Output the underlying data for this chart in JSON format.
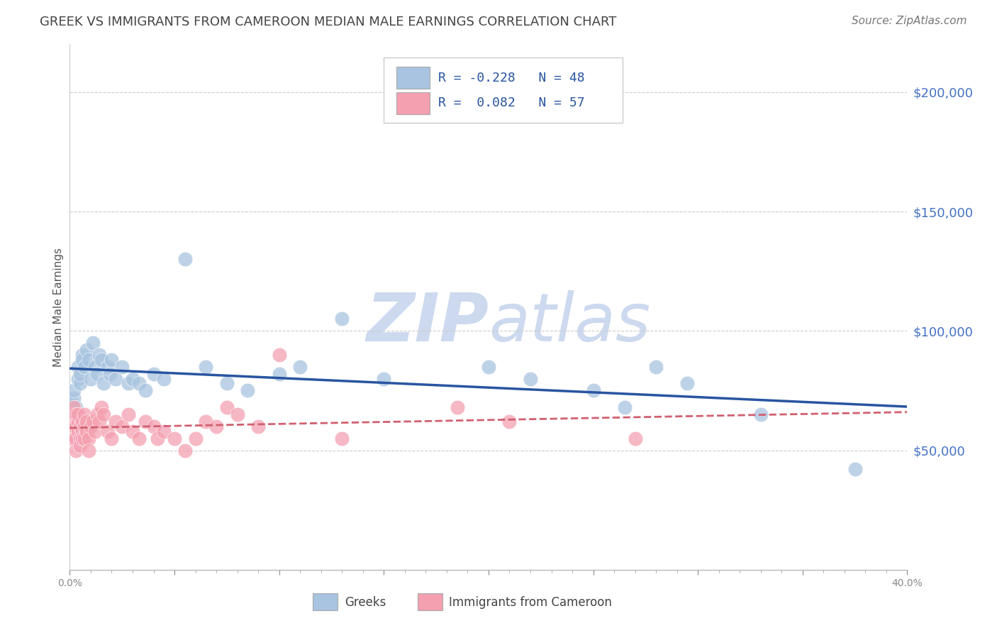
{
  "title": "GREEK VS IMMIGRANTS FROM CAMEROON MEDIAN MALE EARNINGS CORRELATION CHART",
  "source": "Source: ZipAtlas.com",
  "ylabel": "Median Male Earnings",
  "ytick_labels": [
    "$50,000",
    "$100,000",
    "$150,000",
    "$200,000"
  ],
  "ytick_vals": [
    50000,
    100000,
    150000,
    200000
  ],
  "xlim": [
    0.0,
    0.4
  ],
  "ylim": [
    0,
    220000
  ],
  "greek_color": "#a8c4e0",
  "cameroon_color": "#f4a0b0",
  "greek_line_color": "#2955a0",
  "cameroon_line_color": "#d06070",
  "title_color": "#444444",
  "tick_color_right": "#4472c4",
  "watermark_color": "#ccd9ee",
  "background_color": "#ffffff",
  "greeks_x": [
    0.001,
    0.001,
    0.002,
    0.002,
    0.003,
    0.004,
    0.004,
    0.005,
    0.005,
    0.006,
    0.006,
    0.007,
    0.008,
    0.009,
    0.01,
    0.011,
    0.012,
    0.013,
    0.014,
    0.015,
    0.016,
    0.018,
    0.019,
    0.02,
    0.022,
    0.025,
    0.028,
    0.03,
    0.033,
    0.036,
    0.04,
    0.045,
    0.055,
    0.065,
    0.075,
    0.085,
    0.1,
    0.11,
    0.13,
    0.15,
    0.2,
    0.22,
    0.25,
    0.265,
    0.28,
    0.295,
    0.33,
    0.375
  ],
  "greeks_y": [
    70000,
    65000,
    72000,
    75000,
    68000,
    80000,
    85000,
    78000,
    82000,
    90000,
    88000,
    85000,
    92000,
    88000,
    80000,
    95000,
    85000,
    82000,
    90000,
    88000,
    78000,
    85000,
    82000,
    88000,
    80000,
    85000,
    78000,
    80000,
    78000,
    75000,
    82000,
    80000,
    130000,
    85000,
    78000,
    75000,
    82000,
    85000,
    105000,
    80000,
    85000,
    80000,
    75000,
    68000,
    85000,
    78000,
    65000,
    42000
  ],
  "cameroon_x": [
    0.001,
    0.001,
    0.001,
    0.002,
    0.002,
    0.002,
    0.003,
    0.003,
    0.003,
    0.003,
    0.004,
    0.004,
    0.004,
    0.005,
    0.005,
    0.005,
    0.006,
    0.006,
    0.006,
    0.007,
    0.007,
    0.007,
    0.008,
    0.008,
    0.009,
    0.009,
    0.01,
    0.011,
    0.012,
    0.013,
    0.014,
    0.015,
    0.016,
    0.018,
    0.02,
    0.022,
    0.025,
    0.028,
    0.03,
    0.033,
    0.036,
    0.04,
    0.042,
    0.045,
    0.05,
    0.055,
    0.06,
    0.065,
    0.07,
    0.075,
    0.08,
    0.09,
    0.1,
    0.13,
    0.185,
    0.21,
    0.27
  ],
  "cameroon_y": [
    55000,
    60000,
    65000,
    60000,
    55000,
    68000,
    65000,
    60000,
    55000,
    50000,
    62000,
    58000,
    65000,
    55000,
    60000,
    52000,
    58000,
    62000,
    55000,
    65000,
    60000,
    55000,
    58000,
    62000,
    55000,
    50000,
    60000,
    62000,
    58000,
    65000,
    62000,
    68000,
    65000,
    58000,
    55000,
    62000,
    60000,
    65000,
    58000,
    55000,
    62000,
    60000,
    55000,
    58000,
    55000,
    50000,
    55000,
    62000,
    60000,
    68000,
    65000,
    60000,
    90000,
    55000,
    68000,
    62000,
    55000
  ]
}
